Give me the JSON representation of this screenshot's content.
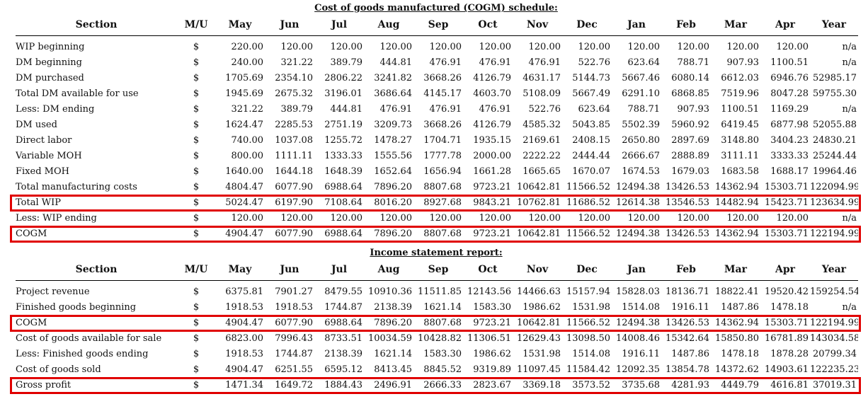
{
  "cogm_schedule": {
    "title": "Cost of goods manufactured (COGM) schedule:",
    "headers": [
      "Section",
      "M/U",
      "May",
      "Jun",
      "Jul",
      "Aug",
      "Sep",
      "Oct",
      "Nov",
      "Dec",
      "Jan",
      "Feb",
      "Mar",
      "Apr",
      "Year"
    ],
    "rows": [
      {
        "section": "WIP beginning",
        "mu": "$",
        "values": [
          "220.00",
          "120.00",
          "120.00",
          "120.00",
          "120.00",
          "120.00",
          "120.00",
          "120.00",
          "120.00",
          "120.00",
          "120.00",
          "120.00",
          "n/a"
        ],
        "highlighted": false
      },
      {
        "section": "DM beginning",
        "mu": "$",
        "values": [
          "240.00",
          "321.22",
          "389.79",
          "444.81",
          "476.91",
          "476.91",
          "476.91",
          "522.76",
          "623.64",
          "788.71",
          "907.93",
          "1100.51",
          "n/a"
        ],
        "highlighted": false
      },
      {
        "section": "DM purchased",
        "mu": "$",
        "values": [
          "1705.69",
          "2354.10",
          "2806.22",
          "3241.82",
          "3668.26",
          "4126.79",
          "4631.17",
          "5144.73",
          "5667.46",
          "6080.14",
          "6612.03",
          "6946.76",
          "52985.17"
        ],
        "highlighted": false
      },
      {
        "section": "Total DM available for use",
        "mu": "$",
        "values": [
          "1945.69",
          "2675.32",
          "3196.01",
          "3686.64",
          "4145.17",
          "4603.70",
          "5108.09",
          "5667.49",
          "6291.10",
          "6868.85",
          "7519.96",
          "8047.28",
          "59755.30"
        ],
        "highlighted": false
      },
      {
        "section": "Less: DM ending",
        "mu": "$",
        "values": [
          "321.22",
          "389.79",
          "444.81",
          "476.91",
          "476.91",
          "476.91",
          "522.76",
          "623.64",
          "788.71",
          "907.93",
          "1100.51",
          "1169.29",
          "n/a"
        ],
        "highlighted": false
      },
      {
        "section": "DM used",
        "mu": "$",
        "values": [
          "1624.47",
          "2285.53",
          "2751.19",
          "3209.73",
          "3668.26",
          "4126.79",
          "4585.32",
          "5043.85",
          "5502.39",
          "5960.92",
          "6419.45",
          "6877.98",
          "52055.88"
        ],
        "highlighted": false
      },
      {
        "section": "Direct labor",
        "mu": "$",
        "values": [
          "740.00",
          "1037.08",
          "1255.72",
          "1478.27",
          "1704.71",
          "1935.15",
          "2169.61",
          "2408.15",
          "2650.80",
          "2897.69",
          "3148.80",
          "3404.23",
          "24830.21"
        ],
        "highlighted": false
      },
      {
        "section": "Variable MOH",
        "mu": "$",
        "values": [
          "800.00",
          "1111.11",
          "1333.33",
          "1555.56",
          "1777.78",
          "2000.00",
          "2222.22",
          "2444.44",
          "2666.67",
          "2888.89",
          "3111.11",
          "3333.33",
          "25244.44"
        ],
        "highlighted": false
      },
      {
        "section": "Fixed MOH",
        "mu": "$",
        "values": [
          "1640.00",
          "1644.18",
          "1648.39",
          "1652.64",
          "1656.94",
          "1661.28",
          "1665.65",
          "1670.07",
          "1674.53",
          "1679.03",
          "1683.58",
          "1688.17",
          "19964.46"
        ],
        "highlighted": false
      },
      {
        "section": "Total manufacturing costs",
        "mu": "$",
        "values": [
          "4804.47",
          "6077.90",
          "6988.64",
          "7896.20",
          "8807.68",
          "9723.21",
          "10642.81",
          "11566.52",
          "12494.38",
          "13426.53",
          "14362.94",
          "15303.71",
          "122094.99"
        ],
        "highlighted": false
      },
      {
        "section": "Total WIP",
        "mu": "$",
        "values": [
          "5024.47",
          "6197.90",
          "7108.64",
          "8016.20",
          "8927.68",
          "9843.21",
          "10762.81",
          "11686.52",
          "12614.38",
          "13546.53",
          "14482.94",
          "15423.71",
          "123634.99"
        ],
        "highlighted": true
      },
      {
        "section": "Less: WIP ending",
        "mu": "$",
        "values": [
          "120.00",
          "120.00",
          "120.00",
          "120.00",
          "120.00",
          "120.00",
          "120.00",
          "120.00",
          "120.00",
          "120.00",
          "120.00",
          "120.00",
          "n/a"
        ],
        "highlighted": false
      },
      {
        "section": "COGM",
        "mu": "$",
        "values": [
          "4904.47",
          "6077.90",
          "6988.64",
          "7896.20",
          "8807.68",
          "9723.21",
          "10642.81",
          "11566.52",
          "12494.38",
          "13426.53",
          "14362.94",
          "15303.71",
          "122194.99"
        ],
        "highlighted": true
      }
    ]
  },
  "income_statement": {
    "title": "Income statement report:",
    "headers": [
      "Section",
      "M/U",
      "May",
      "Jun",
      "Jul",
      "Aug",
      "Sep",
      "Oct",
      "Nov",
      "Dec",
      "Jan",
      "Feb",
      "Mar",
      "Apr",
      "Year"
    ],
    "rows": [
      {
        "section": "Project revenue",
        "mu": "$",
        "values": [
          "6375.81",
          "7901.27",
          "8479.55",
          "10910.36",
          "11511.85",
          "12143.56",
          "14466.63",
          "15157.94",
          "15828.03",
          "18136.71",
          "18822.41",
          "19520.42",
          "159254.54"
        ],
        "highlighted": false
      },
      {
        "section": "Finished goods beginning",
        "mu": "$",
        "values": [
          "1918.53",
          "1918.53",
          "1744.87",
          "2138.39",
          "1621.14",
          "1583.30",
          "1986.62",
          "1531.98",
          "1514.08",
          "1916.11",
          "1487.86",
          "1478.18",
          "n/a"
        ],
        "highlighted": false
      },
      {
        "section": "COGM",
        "mu": "$",
        "values": [
          "4904.47",
          "6077.90",
          "6988.64",
          "7896.20",
          "8807.68",
          "9723.21",
          "10642.81",
          "11566.52",
          "12494.38",
          "13426.53",
          "14362.94",
          "15303.71",
          "122194.99"
        ],
        "highlighted": true
      },
      {
        "section": "Cost of goods available for sale",
        "mu": "$",
        "values": [
          "6823.00",
          "7996.43",
          "8733.51",
          "10034.59",
          "10428.82",
          "11306.51",
          "12629.43",
          "13098.50",
          "14008.46",
          "15342.64",
          "15850.80",
          "16781.89",
          "143034.58"
        ],
        "highlighted": false
      },
      {
        "section": "Less: Finished goods ending",
        "mu": "$",
        "values": [
          "1918.53",
          "1744.87",
          "2138.39",
          "1621.14",
          "1583.30",
          "1986.62",
          "1531.98",
          "1514.08",
          "1916.11",
          "1487.86",
          "1478.18",
          "1878.28",
          "20799.34"
        ],
        "highlighted": false
      },
      {
        "section": "Cost of goods sold",
        "mu": "$",
        "values": [
          "4904.47",
          "6251.55",
          "6595.12",
          "8413.45",
          "8845.52",
          "9319.89",
          "11097.45",
          "11584.42",
          "12092.35",
          "13854.78",
          "14372.62",
          "14903.61",
          "122235.23"
        ],
        "highlighted": false
      },
      {
        "section": "Gross profit",
        "mu": "$",
        "values": [
          "1471.34",
          "1649.72",
          "1884.43",
          "2496.91",
          "2666.33",
          "2823.67",
          "3369.18",
          "3573.52",
          "3735.68",
          "4281.93",
          "4449.79",
          "4616.81",
          "37019.31"
        ],
        "highlighted": true
      }
    ]
  },
  "colors": {
    "highlight": "#e00000",
    "text": "#111111"
  }
}
